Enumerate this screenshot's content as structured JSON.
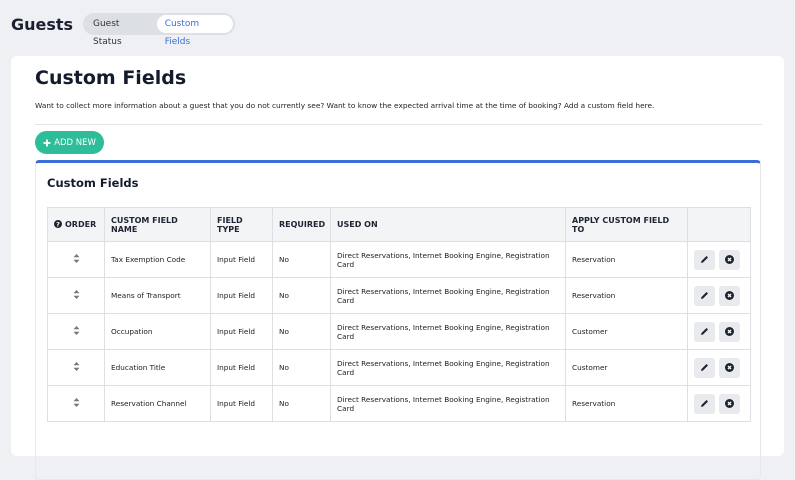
{
  "header": {
    "title": "Guests",
    "tabs": [
      "Guest Status",
      "Custom Fields"
    ]
  },
  "panel": {
    "title": "Custom Fields",
    "description": "Want to collect more information about a guest that you do not currently see? Want to know the expected arrival time at the time of booking? Add a custom field here.",
    "add_button": "ADD NEW"
  },
  "card": {
    "title": "Custom Fields"
  },
  "table": {
    "columns": [
      "ORDER",
      "CUSTOM FIELD NAME",
      "FIELD TYPE",
      "REQUIRED",
      "USED ON",
      "APPLY CUSTOM FIELD TO"
    ],
    "rows": [
      [
        "Tax Exemption Code",
        "Input Field",
        "No",
        "Direct Reservations, Internet Booking Engine, Registration Card",
        "Reservation"
      ],
      [
        "Means of Transport",
        "Input Field",
        "No",
        "Direct Reservations, Internet Booking Engine, Registration Card",
        "Reservation"
      ],
      [
        "Occupation",
        "Input Field",
        "No",
        "Direct Reservations, Internet Booking Engine, Registration Card",
        "Customer"
      ],
      [
        "Education Title",
        "Input Field",
        "No",
        "Direct Reservations, Internet Booking Engine, Registration Card",
        "Customer"
      ],
      [
        "Reservation Channel",
        "Input Field",
        "No",
        "Direct Reservations, Internet Booking Engine, Registration Card",
        "Reservation"
      ]
    ]
  }
}
